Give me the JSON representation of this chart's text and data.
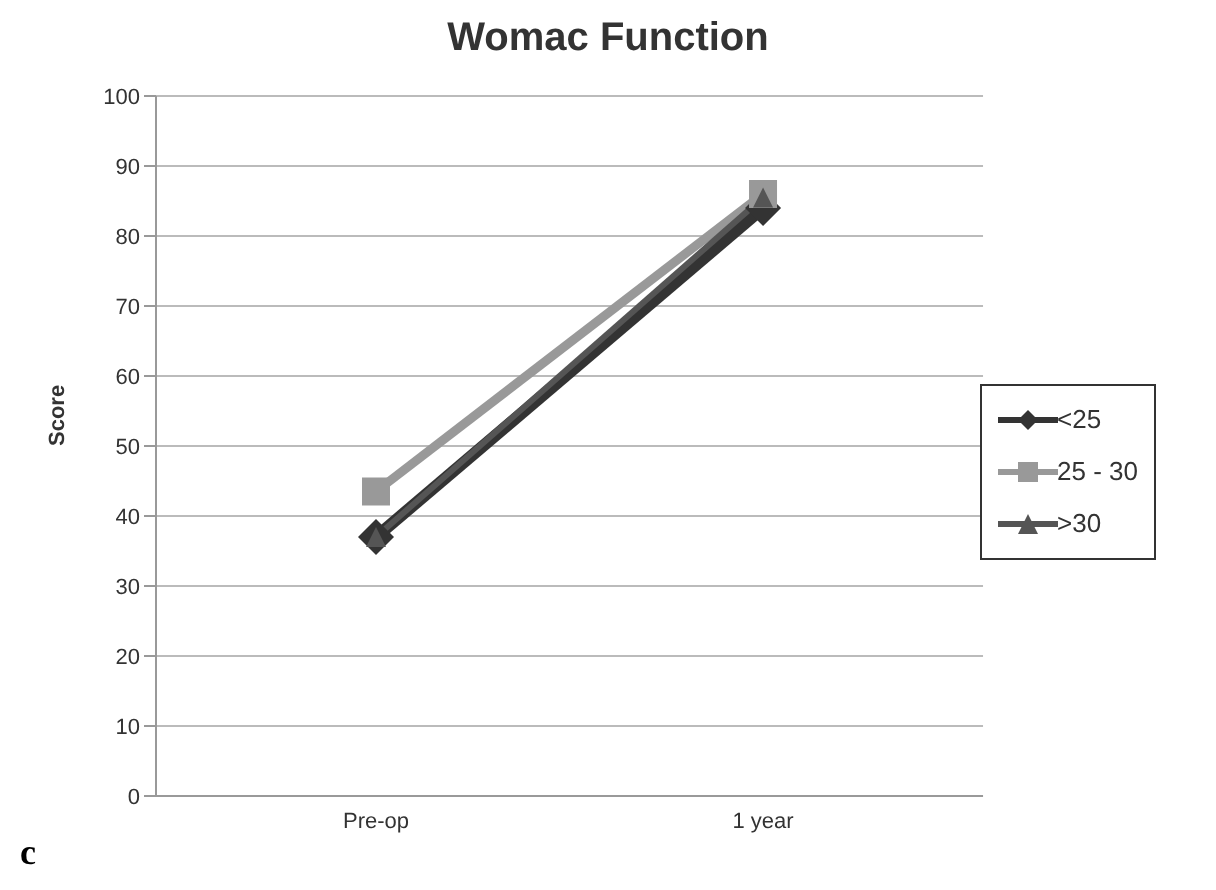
{
  "chart_data": {
    "type": "line",
    "title": "Womac Function",
    "ylabel": "Score",
    "categories": [
      "Pre-op",
      "1 year"
    ],
    "series": [
      {
        "name": "<25",
        "color": "#333333",
        "marker": "diamond",
        "values": [
          37,
          84
        ]
      },
      {
        "name": "25 - 30",
        "color": "#999999",
        "marker": "square",
        "values": [
          43.5,
          86
        ]
      },
      {
        "name": ">30",
        "color": "#555555",
        "marker": "triangle",
        "values": [
          37,
          85.5
        ]
      }
    ],
    "ylim": [
      0,
      100
    ],
    "yticks": [
      0,
      10,
      20,
      30,
      40,
      50,
      60,
      70,
      80,
      90,
      100
    ],
    "grid": "y",
    "legend": "right",
    "annotations": [
      "c"
    ]
  }
}
